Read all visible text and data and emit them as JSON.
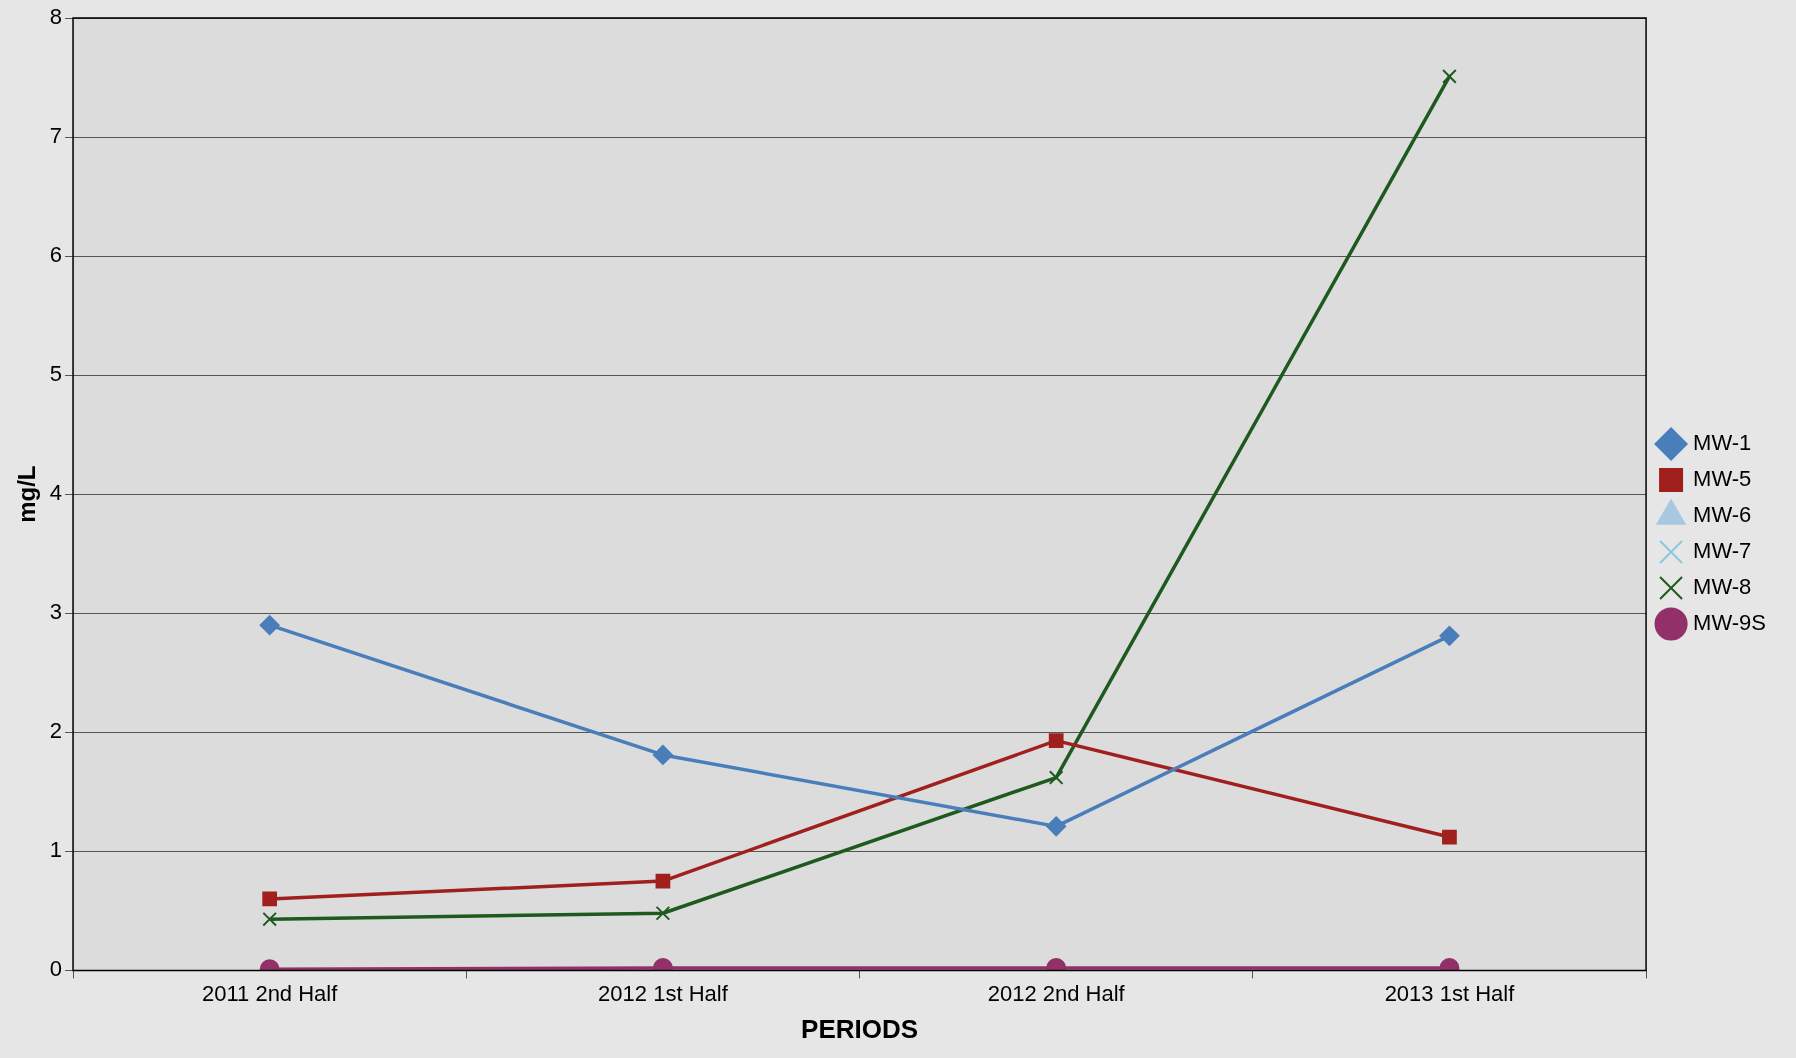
{
  "chart_data": {
    "type": "line",
    "xlabel": "PERIODS",
    "ylabel": "mg/L",
    "categories": [
      "2011 2nd Half",
      "2012 1st Half",
      "2012 2nd Half",
      "2013 1st Half"
    ],
    "series": [
      {
        "name": "MW-1",
        "color": "#4a7ebb",
        "marker": "diamond",
        "values": [
          2.9,
          1.81,
          1.21,
          2.81
        ]
      },
      {
        "name": "MW-5",
        "color": "#a0201e",
        "marker": "square",
        "values": [
          0.6,
          0.75,
          1.93,
          1.12
        ]
      },
      {
        "name": "MW-6",
        "color": "#a8c8e0",
        "marker": "triangle",
        "values": [
          null,
          null,
          null,
          null
        ]
      },
      {
        "name": "MW-7",
        "color": "#8ec6e0",
        "marker": "cross",
        "values": [
          null,
          null,
          null,
          null
        ]
      },
      {
        "name": "MW-8",
        "color": "#1e5a1e",
        "marker": "cross",
        "values": [
          0.43,
          0.48,
          1.62,
          7.51
        ]
      },
      {
        "name": "MW-9S",
        "color": "#92306a",
        "marker": "circle",
        "values": [
          0.01,
          0.02,
          0.02,
          0.02
        ]
      }
    ],
    "ylim": [
      0,
      8
    ],
    "yticks": [
      0,
      1,
      2,
      3,
      4,
      5,
      6,
      7,
      8
    ],
    "grid": "y",
    "legend": "right"
  }
}
